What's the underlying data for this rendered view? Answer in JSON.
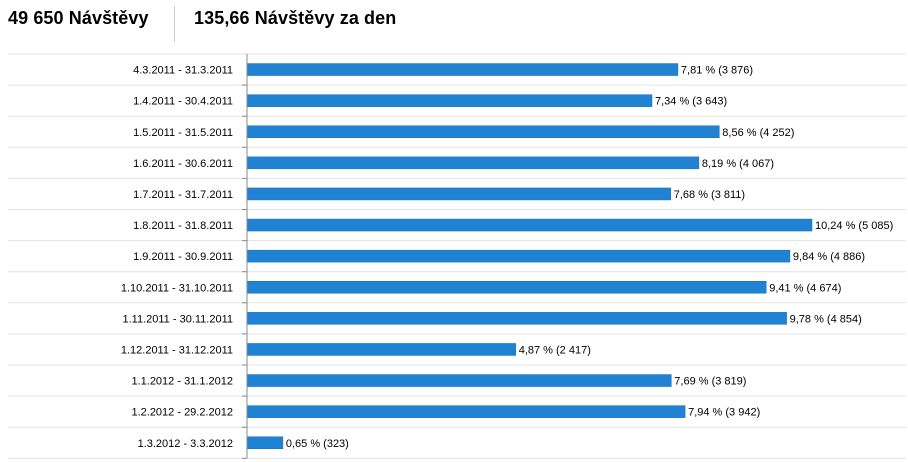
{
  "header": {
    "total_visits": "49 650 Návštěvy",
    "visits_per_day": "135,66 Návštěvy za den"
  },
  "colors": {
    "bar": "#1f82d3",
    "bar_stroke": "#1a6fb5",
    "row_line": "#e3e3e3",
    "axis": "#8a8a8a",
    "text": "#000000"
  },
  "chart_data": {
    "type": "bar",
    "orientation": "horizontal",
    "title": "",
    "xlabel": "",
    "ylabel": "",
    "unit": "%",
    "xlim": [
      0,
      10.24
    ],
    "grid": false,
    "categories": [
      "4.3.2011 - 31.3.2011",
      "1.4.2011 - 30.4.2011",
      "1.5.2011 - 31.5.2011",
      "1.6.2011 - 30.6.2011",
      "1.7.2011 - 31.7.2011",
      "1.8.2011 - 31.8.2011",
      "1.9.2011 - 30.9.2011",
      "1.10.2011 - 31.10.2011",
      "1.11.2011 - 30.11.2011",
      "1.12.2011 - 31.12.2011",
      "1.1.2012 - 31.1.2012",
      "1.2.2012 - 29.2.2012",
      "1.3.2012 - 3.3.2012"
    ],
    "values": [
      7.81,
      7.34,
      8.56,
      8.19,
      7.68,
      10.24,
      9.84,
      9.41,
      9.78,
      4.87,
      7.69,
      7.94,
      0.65
    ],
    "visits": [
      3876,
      3643,
      4252,
      4067,
      3811,
      5085,
      4886,
      4674,
      4854,
      2417,
      3819,
      3942,
      323
    ],
    "data_labels": [
      "7,81 % (3 876)",
      "7,34 % (3 643)",
      "8,56 % (4 252)",
      "8,19 % (4 067)",
      "7,68 % (3 811)",
      "10,24 % (5 085)",
      "9,84 % (4 886)",
      "9,41 % (4 674)",
      "9,78 % (4 854)",
      "4,87 % (2 417)",
      "7,69 % (3 819)",
      "7,94 % (3 942)",
      "0,65 % (323)"
    ]
  }
}
